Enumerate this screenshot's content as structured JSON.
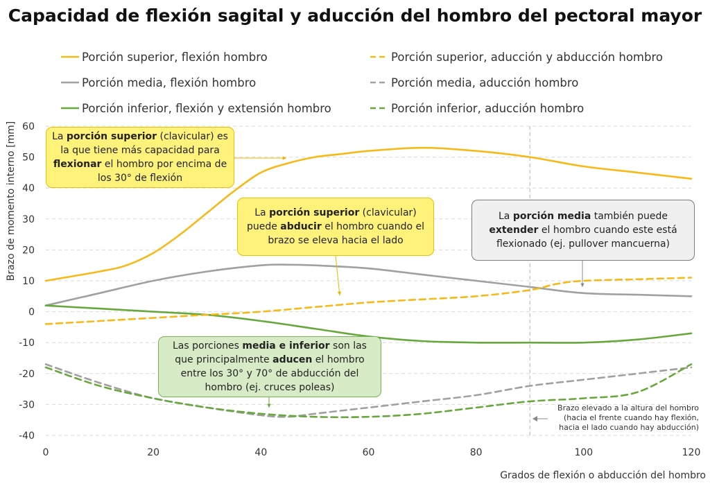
{
  "title": "Capacidad de flexión sagital y aducción del hombro del pectoral mayor",
  "colors": {
    "superior": "#f7b917",
    "media": "#a0a0a0",
    "inferior": "#67a83d"
  },
  "chart_data": {
    "type": "line",
    "xlabel": "Grados de flexión o abducción del hombro",
    "ylabel": "Brazo de momento interno [mm]",
    "xlim": [
      0,
      120
    ],
    "ylim": [
      -40,
      60
    ],
    "xticks": [
      0,
      20,
      40,
      60,
      80,
      100,
      120
    ],
    "yticks": [
      -40,
      -30,
      -20,
      -10,
      0,
      10,
      20,
      30,
      40,
      50,
      60
    ],
    "grid": "horizontal dashed",
    "legend_position": "top",
    "series": [
      {
        "name": "Porción superior, flexión hombro",
        "color": "#f7b917",
        "dash": false,
        "x": [
          0,
          10,
          15,
          20,
          25,
          30,
          35,
          40,
          45,
          50,
          55,
          60,
          70,
          80,
          90,
          100,
          110,
          120
        ],
        "y": [
          10,
          13,
          15,
          19,
          25,
          32,
          39,
          45,
          48,
          50,
          51,
          52,
          53,
          52,
          50,
          47,
          45,
          43
        ]
      },
      {
        "name": "Porción media, flexión hombro",
        "color": "#a0a0a0",
        "dash": false,
        "x": [
          0,
          10,
          20,
          30,
          40,
          45,
          50,
          60,
          70,
          80,
          90,
          100,
          110,
          120
        ],
        "y": [
          2,
          6,
          10,
          13,
          15,
          15.2,
          15,
          14,
          12,
          10,
          8,
          6,
          5.5,
          5
        ]
      },
      {
        "name": "Porción inferior, flexión y extensión hombro",
        "color": "#67a83d",
        "dash": false,
        "x": [
          0,
          10,
          20,
          30,
          40,
          50,
          60,
          70,
          80,
          90,
          100,
          110,
          120
        ],
        "y": [
          2,
          1,
          0,
          -1,
          -3,
          -5.5,
          -8,
          -9.5,
          -10,
          -10,
          -10,
          -9,
          -7
        ]
      },
      {
        "name": "Porción superior, aducción y abducción hombro",
        "color": "#f7b917",
        "dash": true,
        "x": [
          0,
          10,
          20,
          30,
          40,
          50,
          60,
          70,
          80,
          90,
          95,
          100,
          110,
          120
        ],
        "y": [
          -4,
          -3,
          -2,
          -1,
          0,
          1.5,
          3,
          4,
          5,
          7,
          9,
          10,
          10.5,
          11
        ]
      },
      {
        "name": "Porción media, aducción hombro",
        "color": "#a0a0a0",
        "dash": true,
        "x": [
          0,
          10,
          20,
          30,
          40,
          45,
          50,
          60,
          70,
          80,
          90,
          100,
          110,
          120
        ],
        "y": [
          -17,
          -23,
          -28,
          -31,
          -33.5,
          -34,
          -33,
          -31,
          -29,
          -27,
          -24,
          -22,
          -20,
          -18
        ]
      },
      {
        "name": "Porción inferior, aducción hombro",
        "color": "#67a83d",
        "dash": true,
        "x": [
          0,
          10,
          20,
          30,
          40,
          50,
          60,
          70,
          80,
          90,
          100,
          110,
          120
        ],
        "y": [
          -18,
          -24,
          -28,
          -31,
          -33,
          -34,
          -34,
          -33,
          -31,
          -29,
          -28,
          -26,
          -17
        ]
      }
    ],
    "reference_line": {
      "x": 90,
      "label": "Brazo elevado a la altura del hombro (hacia el frente cuando hay flexión, hacia el lado cuando hay abducción)"
    }
  },
  "annotations": {
    "superior_flexion": {
      "pre": "La ",
      "b1": "porción superior",
      "mid1": " (clavicular) es la que tiene más capacidad para ",
      "b2": "flexionar",
      "post": " el hombro por encima de los 30° de flexión"
    },
    "superior_abduccion": {
      "pre": "La ",
      "b1": "porción superior",
      "mid1": " (clavicular) puede ",
      "b2": "abducir",
      "post": " el hombro cuando el brazo se eleva hacia el lado"
    },
    "media_extension": {
      "pre": "La ",
      "b1": "porción media",
      "mid1": " también puede ",
      "b2": "extender",
      "post": " el hombro cuando este está flexionado (ej. pullover mancuerna)"
    },
    "media_inferior_aduccion": {
      "pre": "Las porciones ",
      "b1": "media e inferior",
      "mid1": " son las que principalmente ",
      "b2": "aducen",
      "post": " el hombro entre los 30° y 70° de abducción del hombro (ej. cruces poleas)"
    },
    "reference_line_lines": [
      "Brazo elevado a la altura del hombro",
      "(hacia el frente cuando hay flexión,",
      "hacia el lado cuando hay abducción)"
    ]
  }
}
